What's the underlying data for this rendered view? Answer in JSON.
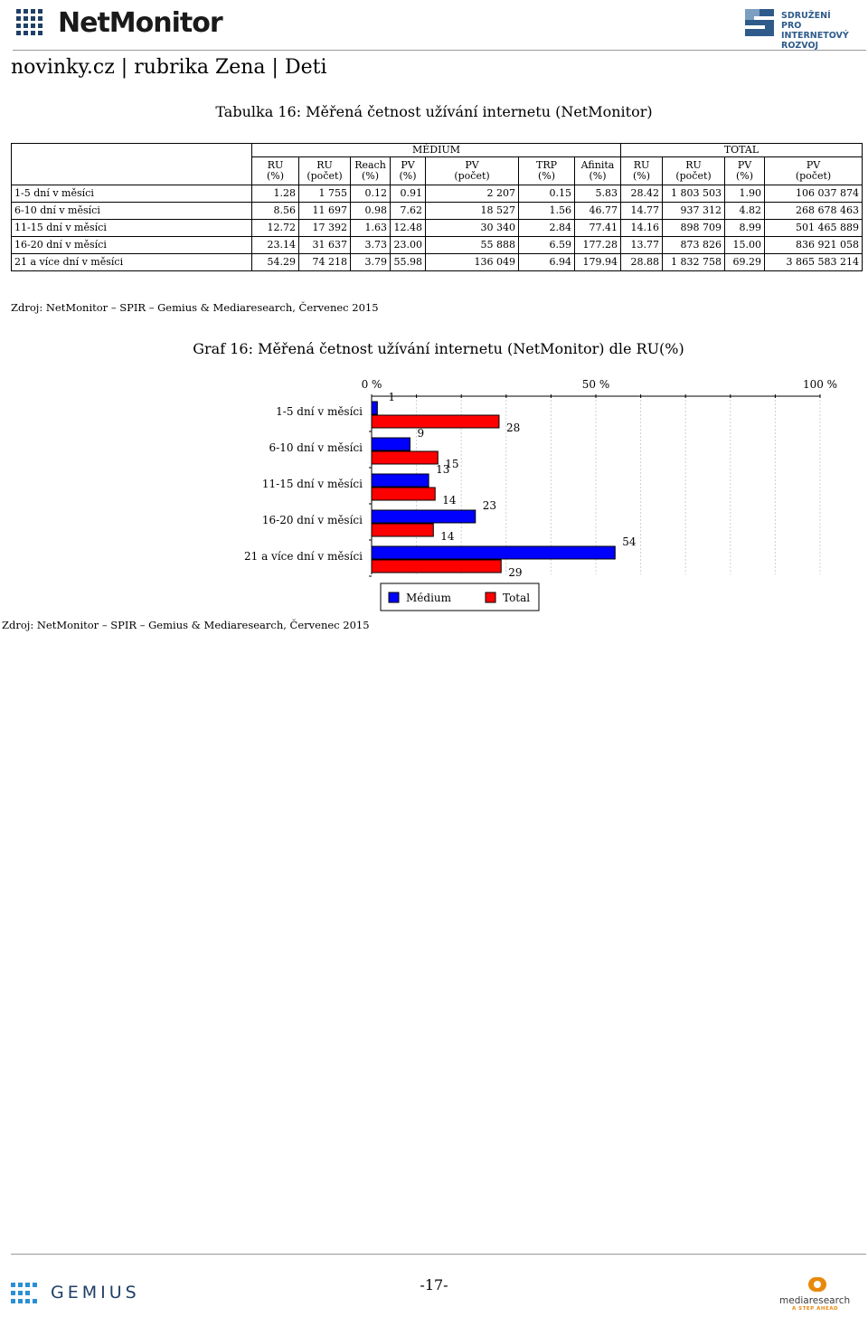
{
  "header": {
    "brand": "NetMonitor",
    "partner_logo_lines": [
      "SDRUŽENÍ",
      "PRO INTERNETOVÝ",
      "ROZVOJ"
    ],
    "section_title": "novinky.cz | rubrika Zena | Deti",
    "logo_icons": [
      "netmonitor-dots-icon",
      "spir-logo-icon"
    ]
  },
  "table": {
    "title": "Tabulka 16: Měřená četnost užívání internetu (NetMonitor)",
    "groups": {
      "medium": "MÉDIUM",
      "total": "TOTAL"
    },
    "columns": [
      "RU\n(%)",
      "RU\n(počet)",
      "Reach\n(%)",
      "PV\n(%)",
      "PV\n(počet)",
      "TRP\n(%)",
      "Afinita\n(%)",
      "RU\n(%)",
      "RU\n(počet)",
      "PV\n(%)",
      "PV\n(počet)"
    ],
    "rows": [
      {
        "label": "1-5 dní v měsíci",
        "values": [
          "1.28",
          "1 755",
          "0.12",
          "0.91",
          "2 207",
          "0.15",
          "5.83",
          "28.42",
          "1 803 503",
          "1.90",
          "106 037 874"
        ]
      },
      {
        "label": "6-10 dní v měsíci",
        "values": [
          "8.56",
          "11 697",
          "0.98",
          "7.62",
          "18 527",
          "1.56",
          "46.77",
          "14.77",
          "937 312",
          "4.82",
          "268 678 463"
        ]
      },
      {
        "label": "11-15 dní v měsíci",
        "values": [
          "12.72",
          "17 392",
          "1.63",
          "12.48",
          "30 340",
          "2.84",
          "77.41",
          "14.16",
          "898 709",
          "8.99",
          "501 465 889"
        ]
      },
      {
        "label": "16-20 dní v měsíci",
        "values": [
          "23.14",
          "31 637",
          "3.73",
          "23.00",
          "55 888",
          "6.59",
          "177.28",
          "13.77",
          "873 826",
          "15.00",
          "836 921 058"
        ]
      },
      {
        "label": "21 a více dní v měsíci",
        "values": [
          "54.29",
          "74 218",
          "3.79",
          "55.98",
          "136 049",
          "6.94",
          "179.94",
          "28.88",
          "1 832 758",
          "69.29",
          "3 865 583 214"
        ]
      }
    ],
    "source": "Zdroj: NetMonitor – SPIR – Gemius & Mediaresearch, Červenec 2015"
  },
  "chart_data": {
    "type": "bar",
    "orientation": "horizontal",
    "title": "Graf 16: Měřená četnost užívání internetu (NetMonitor) dle RU(%)",
    "categories": [
      "1-5 dní v měsíci",
      "6-10 dní v měsíci",
      "11-15 dní v měsíci",
      "16-20 dní v měsíci",
      "21 a více dní v měsíci"
    ],
    "series": [
      {
        "name": "Médium",
        "color": "#0000ff",
        "values": [
          1.28,
          8.56,
          12.72,
          23.14,
          54.29
        ],
        "labels": [
          "1",
          "9",
          "13",
          "23",
          "54"
        ]
      },
      {
        "name": "Total",
        "color": "#ff0000",
        "values": [
          28.42,
          14.77,
          14.16,
          13.77,
          28.88
        ],
        "labels": [
          "28",
          "15",
          "14",
          "14",
          "29"
        ]
      }
    ],
    "xlim": [
      0,
      100
    ],
    "x_tick_labels": [
      "0 %",
      "50 %",
      "100 %"
    ],
    "x_tick_values": [
      0,
      50,
      100
    ],
    "grid": true,
    "legend_placement": "bottom"
  },
  "chart_source": "Zdroj: NetMonitor – SPIR – Gemius & Mediaresearch, Červenec 2015",
  "footer": {
    "page_number": "-17-",
    "gemius_brand": "GEMIUS",
    "mediaresearch_brand": "mediaresearch",
    "mediaresearch_tagline": "A STEP AHEAD"
  }
}
